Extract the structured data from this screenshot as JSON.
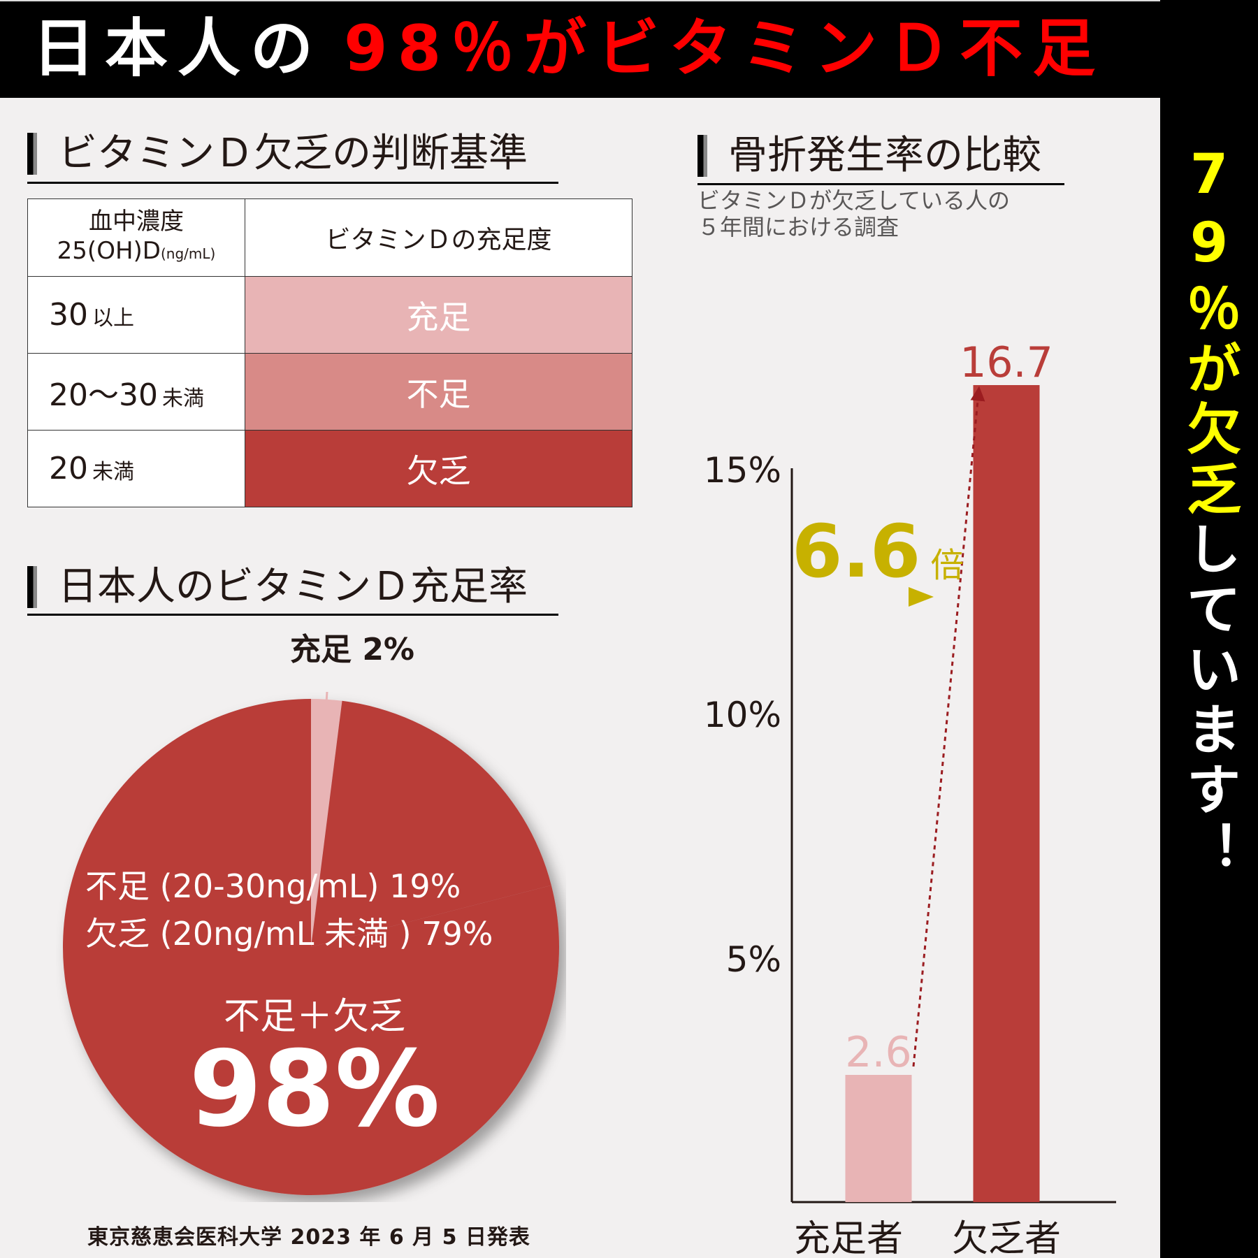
{
  "header": {
    "title_white": "日本人の",
    "title_red": "98％がビタミンＤ不足",
    "colors": {
      "background": "#000000",
      "white": "#ffffff",
      "red": "#ff0000"
    }
  },
  "side_banner": {
    "highlight": "79％が欠乏",
    "rest": "しています！",
    "colors": {
      "highlight": "#ffff00",
      "rest": "#ffffff"
    }
  },
  "criteria": {
    "heading": "ビタミンＤ欠乏の判断基準",
    "header_col1_line1": "血中濃度",
    "header_col1_line2": "25(OH)D",
    "header_col1_unit": "(ng/mL)",
    "header_col2": "ビタミンＤの充足度",
    "rows": [
      {
        "value": "30",
        "qualifier": "以上",
        "status": "充足",
        "color": "#e8b4b5"
      },
      {
        "value": "20〜30",
        "qualifier": "未満",
        "status": "不足",
        "color": "#d88a87"
      },
      {
        "value": "20",
        "qualifier": "未満",
        "status": "欠乏",
        "color": "#b93d39"
      }
    ]
  },
  "pie": {
    "heading": "日本人のビタミンＤ充足率",
    "outside_label": "充足 2%",
    "line1": "不足 (20-30ng/mL) 19%",
    "line2": "欠乏 (20ng/mL 未満 ) 79%",
    "summary_label": "不足＋欠乏",
    "summary_value": "98%"
  },
  "fracture": {
    "heading": "骨折発生率の比較",
    "subtitle_line1": "ビタミンＤが欠乏している人の",
    "subtitle_line2": "５年間における調査",
    "multiplier_value": "6.6",
    "multiplier_unit": "倍"
  },
  "chart_data": [
    {
      "type": "pie",
      "slices": [
        {
          "label": "充足",
          "value": 2,
          "color": "#e8b4b5"
        },
        {
          "label": "不足 (20-30ng/mL)",
          "value": 19,
          "color": "#b93d39"
        },
        {
          "label": "欠乏 (20ng/mL 未満 )",
          "value": 79,
          "color": "#b93d39"
        }
      ]
    },
    {
      "type": "bar",
      "categories": [
        "充足者",
        "欠乏者"
      ],
      "values": [
        2.6,
        16.7
      ],
      "value_labels": [
        "2.6",
        "16.7"
      ],
      "colors": [
        "#e8b4b5",
        "#b93d39"
      ],
      "ylim": [
        0,
        17
      ],
      "yticks": [
        5,
        10,
        15
      ],
      "ytick_labels": [
        "5%",
        "10%",
        "15%"
      ],
      "grid": false
    }
  ],
  "source": "東京慈恵会医科大学 2023 年 6 月 5 日発表"
}
